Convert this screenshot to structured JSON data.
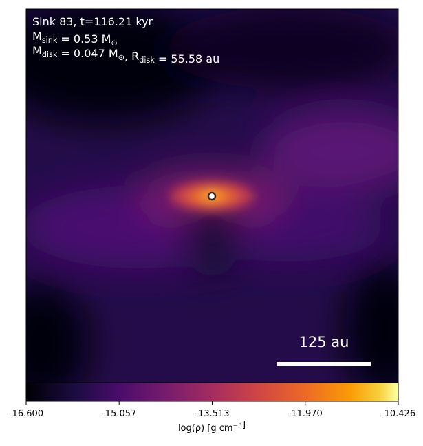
{
  "chart_data": {
    "type": "density-map",
    "annotations": [
      [
        {
          "text": "Sink 83, t=116.21 kyr"
        }
      ],
      [
        {
          "text": "M"
        },
        {
          "sub": "sink"
        },
        {
          "text": " = 0.53 M"
        },
        {
          "sub": "⊙"
        }
      ],
      [
        {
          "text": "M"
        },
        {
          "sub": "disk"
        },
        {
          "text": " = 0.047 M"
        },
        {
          "sub": "⊙"
        },
        {
          "text": ", R"
        },
        {
          "sub": "disk"
        },
        {
          "text": " = 55.58 au"
        }
      ]
    ],
    "scale_bar_label": "125 au",
    "colormap": "inferno",
    "colorbar": {
      "label": [
        {
          "text": "log(ρ) [g cm"
        },
        {
          "sup": "−3"
        },
        {
          "text": "]"
        }
      ],
      "lim": [
        -16.6,
        -10.426
      ],
      "ticks": [
        {
          "value": -16.6,
          "label": "-16.600"
        },
        {
          "value": -15.057,
          "label": "-15.057"
        },
        {
          "value": -13.513,
          "label": "-13.513"
        },
        {
          "value": -11.97,
          "label": "-11.970"
        },
        {
          "value": -10.426,
          "label": "-10.426"
        }
      ]
    }
  }
}
